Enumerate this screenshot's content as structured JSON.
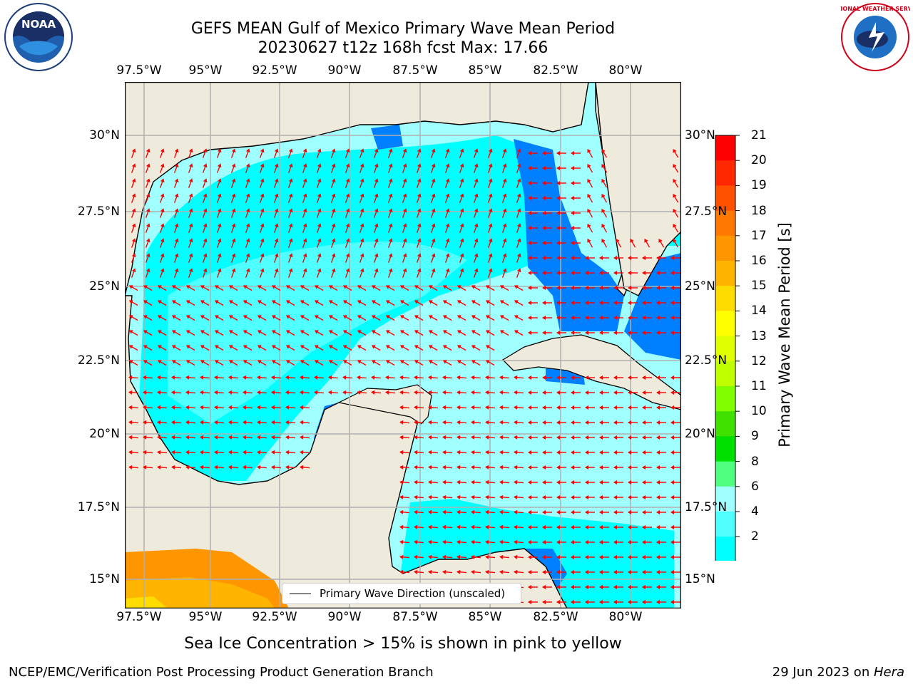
{
  "title_line1": "GEFS MEAN Gulf of Mexico Primary Wave Mean Period",
  "title_line2": "20230627 t12z 168h fcst   Max: 17.66",
  "lon_labels": [
    "97.5°W",
    "95°W",
    "92.5°W",
    "90°W",
    "87.5°W",
    "85°W",
    "82.5°W",
    "80°W"
  ],
  "lat_labels": [
    "30°N",
    "27.5°N",
    "25°N",
    "22.5°N",
    "20°N",
    "17.5°N",
    "15°N"
  ],
  "colorbar": {
    "label": "Primary Wave Mean Period [s]",
    "ticks": [
      "21",
      "20",
      "19",
      "18",
      "17",
      "16",
      "15",
      "14",
      "13",
      "12",
      "11",
      "10",
      "9",
      "8",
      "6",
      "4",
      "2"
    ],
    "colors": [
      "#ff0000",
      "#ff2800",
      "#ff5000",
      "#ff7800",
      "#ff9600",
      "#ffb400",
      "#ffdc00",
      "#ffff00",
      "#e0ff00",
      "#c0ff00",
      "#80ff00",
      "#40e000",
      "#00e000",
      "#50ff80",
      "#a0ffff",
      "#50ffff",
      "#00ffff",
      "#0080ff"
    ],
    "under_color": "#0000ff"
  },
  "legend_label": "Primary Wave Direction (unscaled)",
  "ice_note": "Sea Ice Concentration > 15% is shown in pink to yellow",
  "footer_left": "NCEP/EMC/Verification Post Processing Product Generation Branch",
  "footer_date": "29 Jun 2023 on ",
  "footer_host": "Hera",
  "logo_left_text": "NOAA",
  "logo_right_text": "NATIONAL WEATHER SERVICE",
  "map_colors": {
    "land": "#efebdc",
    "water_4_6": "#00ffff",
    "water_6_8": "#50ffff",
    "water_8_9": "#a0ffff",
    "water_2_4": "#0080ff",
    "arrow": "#ff0000"
  }
}
